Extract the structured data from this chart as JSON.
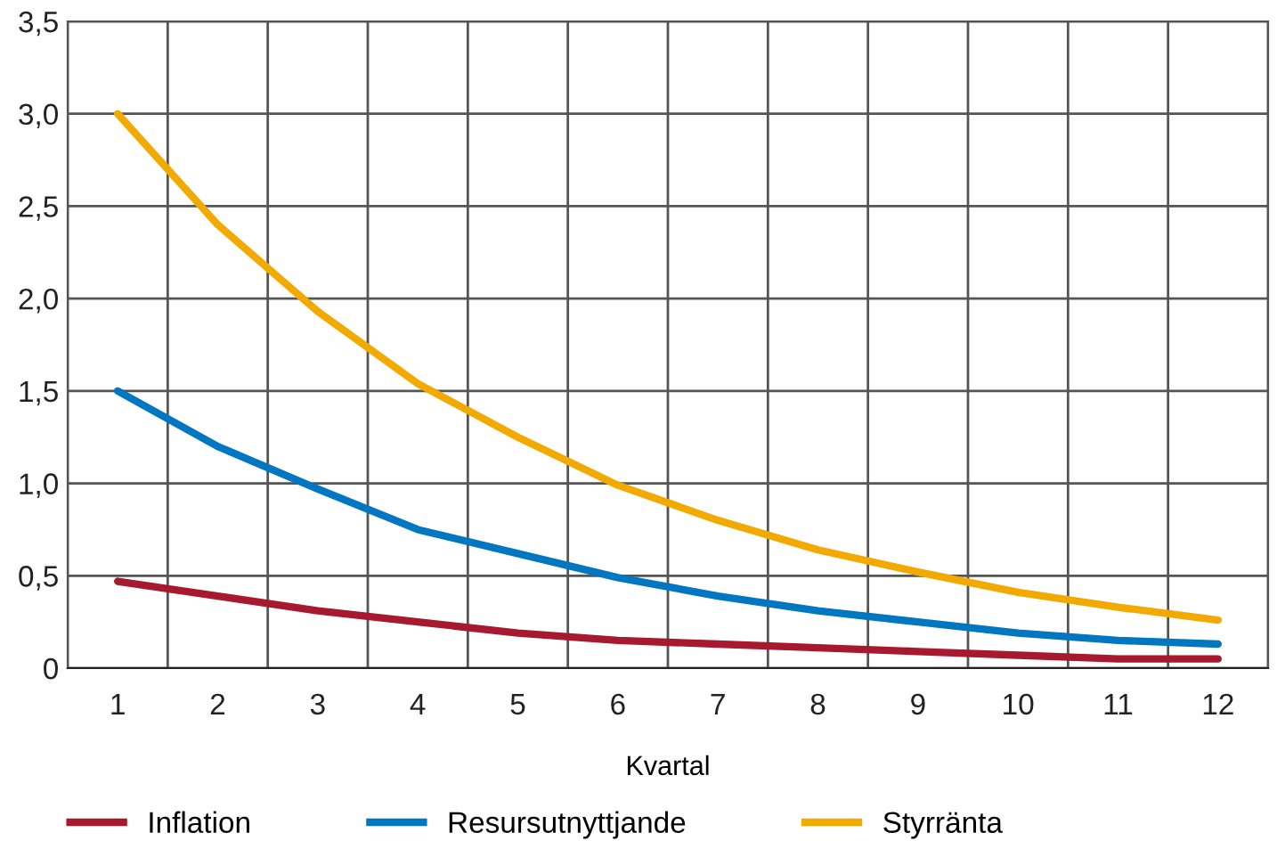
{
  "chart_data": {
    "type": "line",
    "xlabel": "Kvartal",
    "categories": [
      "1",
      "2",
      "3",
      "4",
      "5",
      "6",
      "7",
      "8",
      "9",
      "10",
      "11",
      "12"
    ],
    "series": [
      {
        "name": "Inflation",
        "color": "#a6192e",
        "values": [
          0.47,
          0.39,
          0.31,
          0.25,
          0.19,
          0.15,
          0.13,
          0.11,
          0.09,
          0.07,
          0.05,
          0.05
        ]
      },
      {
        "name": "Resursutnyttjande",
        "color": "#0077c0",
        "values": [
          1.5,
          1.2,
          0.97,
          0.75,
          0.62,
          0.49,
          0.39,
          0.31,
          0.25,
          0.19,
          0.15,
          0.13
        ]
      },
      {
        "name": "Styrränta",
        "color": "#f2a900",
        "values": [
          3.0,
          2.4,
          1.93,
          1.54,
          1.25,
          0.99,
          0.8,
          0.64,
          0.52,
          0.41,
          0.33,
          0.26
        ]
      }
    ],
    "ylim": [
      0,
      3.5
    ],
    "yticks": [
      0,
      {
        "value": 0.5,
        "label": "0,5"
      },
      {
        "value": 1.0,
        "label": "1,0"
      },
      {
        "value": 1.5,
        "label": "1,5"
      },
      {
        "value": 2.0,
        "label": "2,0"
      },
      {
        "value": 2.5,
        "label": "2,5"
      },
      {
        "value": 3.0,
        "label": "3,0"
      },
      {
        "value": 3.5,
        "label": "3,5"
      }
    ],
    "grid": true,
    "legend": "bottom",
    "line_style": "solid",
    "marker": "none"
  }
}
